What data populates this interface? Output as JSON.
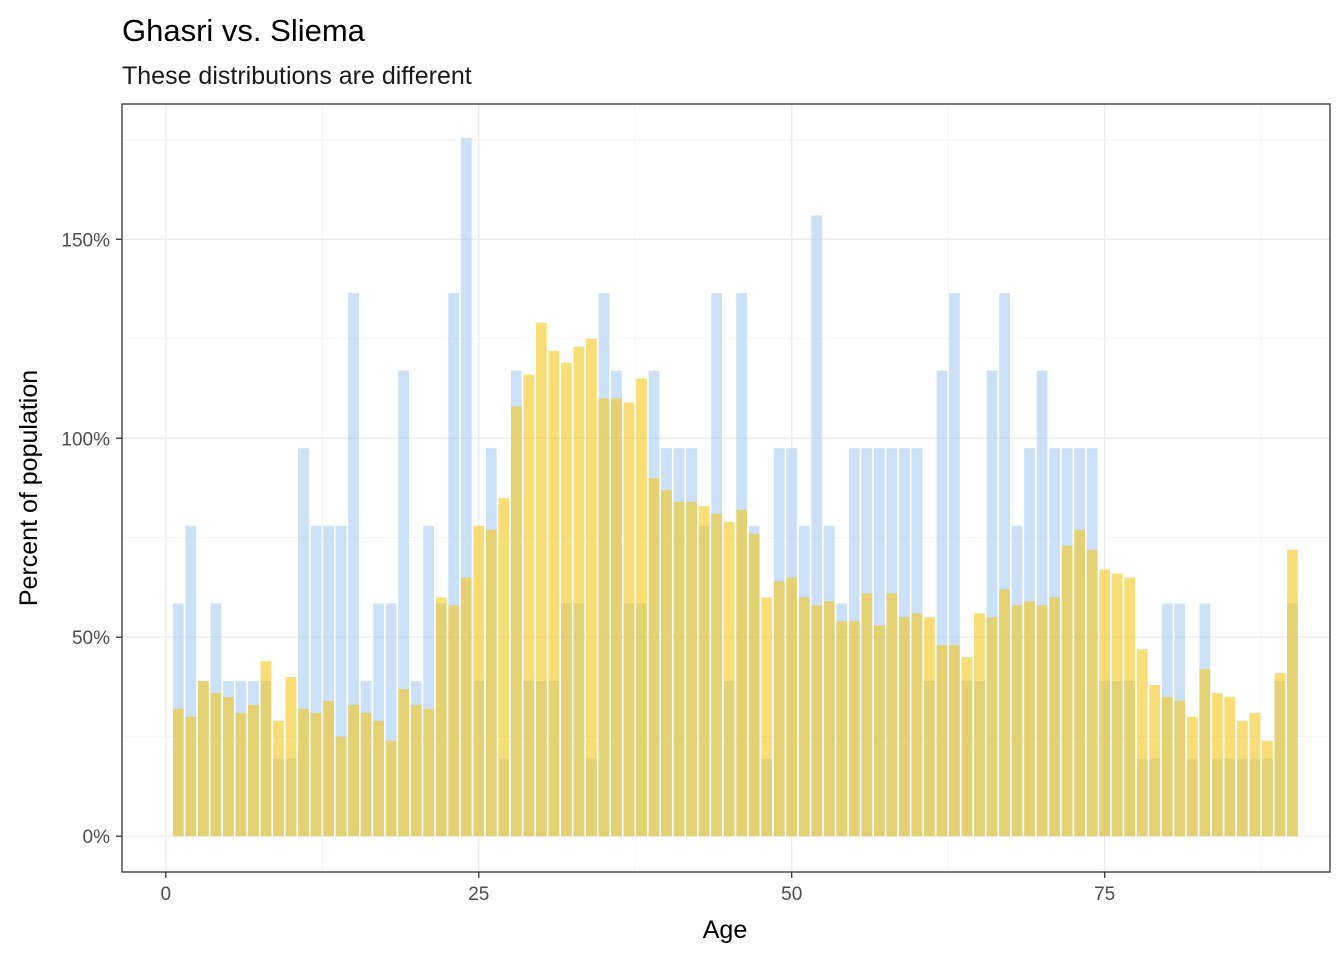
{
  "chart_data": {
    "type": "bar",
    "title": "Ghasri vs. Sliema",
    "subtitle": "These distributions are different",
    "xlabel": "Age",
    "ylabel": "Percent of population",
    "xlim": [
      -3.5,
      93
    ],
    "ylim": [
      -0.09,
      1.84
    ],
    "x_ticks": [
      0,
      25,
      50,
      75
    ],
    "y_ticks": [
      0,
      0.5,
      1.0,
      1.5
    ],
    "y_tick_labels": [
      "0%",
      "50%",
      "100%",
      "150%"
    ],
    "grid": true,
    "legend": "none",
    "overlay": "semi-transparent overlapping bars; overlap blends to grey-green",
    "series": [
      {
        "color": "#a8cdf2",
        "ages": [
          1,
          2,
          3,
          4,
          5,
          6,
          7,
          8,
          9,
          10,
          11,
          12,
          13,
          14,
          15,
          16,
          17,
          18,
          19,
          20,
          21,
          22,
          23,
          24,
          25,
          26,
          27,
          28,
          29,
          30,
          31,
          32,
          33,
          34,
          35,
          36,
          37,
          38,
          39,
          40,
          41,
          42,
          43,
          44,
          45,
          46,
          47,
          48,
          49,
          50,
          51,
          52,
          53,
          54,
          55,
          56,
          57,
          58,
          59,
          60,
          61,
          62,
          63,
          64,
          65,
          66,
          67,
          68,
          69,
          70,
          71,
          72,
          73,
          74,
          75,
          76,
          77,
          78,
          79,
          80,
          81,
          82,
          83,
          84,
          85,
          86,
          87,
          88,
          89,
          90
        ],
        "values": [
          0.585,
          0.78,
          0.39,
          0.585,
          0.39,
          0.39,
          0.39,
          0.39,
          0.195,
          0.195,
          0.975,
          0.78,
          0.78,
          0.78,
          1.365,
          0.39,
          0.585,
          0.585,
          1.17,
          0.39,
          0.78,
          0.585,
          1.365,
          1.755,
          0.39,
          0.975,
          0.195,
          1.17,
          0.39,
          0.39,
          0.39,
          0.585,
          0.585,
          0.195,
          1.365,
          1.17,
          0.585,
          0.585,
          1.17,
          0.975,
          0.975,
          0.975,
          0.78,
          1.365,
          0.39,
          1.365,
          0.78,
          0.195,
          0.975,
          0.975,
          0.78,
          1.56,
          0.78,
          0.585,
          0.975,
          0.975,
          0.975,
          0.975,
          0.975,
          0.975,
          0.39,
          1.17,
          1.365,
          0.39,
          0.39,
          1.17,
          1.365,
          0.78,
          0.975,
          1.17,
          0.975,
          0.975,
          0.975,
          0.975,
          0.39,
          0.39,
          0.39,
          0.195,
          0.195,
          0.585,
          0.585,
          0.195,
          0.585,
          0.195,
          0.195,
          0.195,
          0.195,
          0.195,
          0.39,
          0.585
        ]
      },
      {
        "color": "#f5c71a",
        "ages": [
          1,
          2,
          3,
          4,
          5,
          6,
          7,
          8,
          9,
          10,
          11,
          12,
          13,
          14,
          15,
          16,
          17,
          18,
          19,
          20,
          21,
          22,
          23,
          24,
          25,
          26,
          27,
          28,
          29,
          30,
          31,
          32,
          33,
          34,
          35,
          36,
          37,
          38,
          39,
          40,
          41,
          42,
          43,
          44,
          45,
          46,
          47,
          48,
          49,
          50,
          51,
          52,
          53,
          54,
          55,
          56,
          57,
          58,
          59,
          60,
          61,
          62,
          63,
          64,
          65,
          66,
          67,
          68,
          69,
          70,
          71,
          72,
          73,
          74,
          75,
          76,
          77,
          78,
          79,
          80,
          81,
          82,
          83,
          84,
          85,
          86,
          87,
          88,
          89,
          90
        ],
        "values": [
          0.32,
          0.3,
          0.39,
          0.36,
          0.35,
          0.31,
          0.33,
          0.44,
          0.29,
          0.4,
          0.32,
          0.31,
          0.34,
          0.25,
          0.33,
          0.31,
          0.29,
          0.24,
          0.37,
          0.33,
          0.32,
          0.6,
          0.58,
          0.65,
          0.78,
          0.77,
          0.85,
          1.08,
          1.16,
          1.29,
          1.22,
          1.19,
          1.23,
          1.25,
          1.1,
          1.1,
          1.09,
          1.15,
          0.9,
          0.87,
          0.84,
          0.84,
          0.83,
          0.81,
          0.79,
          0.82,
          0.76,
          0.6,
          0.64,
          0.65,
          0.6,
          0.58,
          0.59,
          0.54,
          0.54,
          0.61,
          0.53,
          0.61,
          0.55,
          0.56,
          0.55,
          0.48,
          0.48,
          0.45,
          0.56,
          0.55,
          0.62,
          0.58,
          0.59,
          0.58,
          0.6,
          0.73,
          0.77,
          0.72,
          0.67,
          0.66,
          0.65,
          0.47,
          0.38,
          0.35,
          0.34,
          0.3,
          0.42,
          0.36,
          0.35,
          0.29,
          0.31,
          0.24,
          0.41,
          0.72
        ]
      }
    ]
  }
}
